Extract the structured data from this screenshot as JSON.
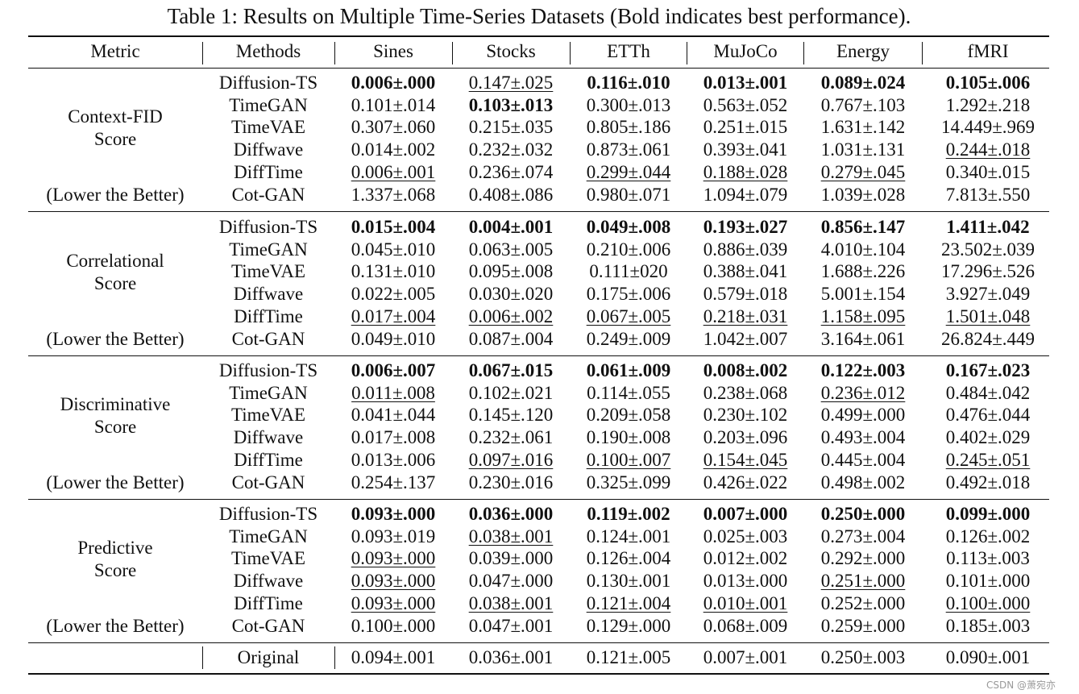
{
  "title": "Table 1: Results on Multiple Time-Series Datasets (Bold indicates best performance).",
  "header": [
    "Metric",
    "Methods",
    "Sines",
    "Stocks",
    "ETTh",
    "MuJoCo",
    "Energy",
    "fMRI"
  ],
  "blocks": [
    {
      "metric": [
        "Context-FID",
        "Score"
      ],
      "note": "(Lower the Better)",
      "rows": [
        [
          "Diffusion-TS",
          "0.006±.000",
          "0.147±.025",
          "0.116±.010",
          "0.013±.001",
          "0.089±.024",
          "0.105±.006"
        ],
        [
          "TimeGAN",
          "0.101±.014",
          "0.103±.013",
          "0.300±.013",
          "0.563±.052",
          "0.767±.103",
          "1.292±.218"
        ],
        [
          "TimeVAE",
          "0.307±.060",
          "0.215±.035",
          "0.805±.186",
          "0.251±.015",
          "1.631±.142",
          "14.449±.969"
        ],
        [
          "Diffwave",
          "0.014±.002",
          "0.232±.032",
          "0.873±.061",
          "0.393±.041",
          "1.031±.131",
          "0.244±.018"
        ],
        [
          "DiffTime",
          "0.006±.001",
          "0.236±.074",
          "0.299±.044",
          "0.188±.028",
          "0.279±.045",
          "0.340±.015"
        ],
        [
          "Cot-GAN",
          "1.337±.068",
          "0.408±.086",
          "0.980±.071",
          "1.094±.079",
          "1.039±.028",
          "7.813±.550"
        ]
      ],
      "style": [
        [
          "b",
          "u",
          "b",
          "b",
          "b",
          "b"
        ],
        [
          null,
          "b",
          null,
          null,
          null,
          null
        ],
        [
          null,
          null,
          null,
          null,
          null,
          null
        ],
        [
          null,
          null,
          null,
          null,
          null,
          "u"
        ],
        [
          "u",
          null,
          "u",
          "u",
          "u",
          null
        ],
        [
          null,
          null,
          null,
          null,
          null,
          null
        ]
      ]
    },
    {
      "metric": [
        "Correlational",
        "Score"
      ],
      "note": "(Lower the Better)",
      "rows": [
        [
          "Diffusion-TS",
          "0.015±.004",
          "0.004±.001",
          "0.049±.008",
          "0.193±.027",
          "0.856±.147",
          "1.411±.042"
        ],
        [
          "TimeGAN",
          "0.045±.010",
          "0.063±.005",
          "0.210±.006",
          "0.886±.039",
          "4.010±.104",
          "23.502±.039"
        ],
        [
          "TimeVAE",
          "0.131±.010",
          "0.095±.008",
          "0.111±020",
          "0.388±.041",
          "1.688±.226",
          "17.296±.526"
        ],
        [
          "Diffwave",
          "0.022±.005",
          "0.030±.020",
          "0.175±.006",
          "0.579±.018",
          "5.001±.154",
          "3.927±.049"
        ],
        [
          "DiffTime",
          "0.017±.004",
          "0.006±.002",
          "0.067±.005",
          "0.218±.031",
          "1.158±.095",
          "1.501±.048"
        ],
        [
          "Cot-GAN",
          "0.049±.010",
          "0.087±.004",
          "0.249±.009",
          "1.042±.007",
          "3.164±.061",
          "26.824±.449"
        ]
      ],
      "style": [
        [
          "b",
          "b",
          "b",
          "b",
          "b",
          "b"
        ],
        [
          null,
          null,
          null,
          null,
          null,
          null
        ],
        [
          null,
          null,
          null,
          null,
          null,
          null
        ],
        [
          null,
          null,
          null,
          null,
          null,
          null
        ],
        [
          "u",
          "u",
          "u",
          "u",
          "u",
          "u"
        ],
        [
          null,
          null,
          null,
          null,
          null,
          null
        ]
      ]
    },
    {
      "metric": [
        "Discriminative",
        "Score"
      ],
      "note": "(Lower the Better)",
      "rows": [
        [
          "Diffusion-TS",
          "0.006±.007",
          "0.067±.015",
          "0.061±.009",
          "0.008±.002",
          "0.122±.003",
          "0.167±.023"
        ],
        [
          "TimeGAN",
          "0.011±.008",
          "0.102±.021",
          "0.114±.055",
          "0.238±.068",
          "0.236±.012",
          "0.484±.042"
        ],
        [
          "TimeVAE",
          "0.041±.044",
          "0.145±.120",
          "0.209±.058",
          "0.230±.102",
          "0.499±.000",
          "0.476±.044"
        ],
        [
          "Diffwave",
          "0.017±.008",
          "0.232±.061",
          "0.190±.008",
          "0.203±.096",
          "0.493±.004",
          "0.402±.029"
        ],
        [
          "DiffTime",
          "0.013±.006",
          "0.097±.016",
          "0.100±.007",
          "0.154±.045",
          "0.445±.004",
          "0.245±.051"
        ],
        [
          "Cot-GAN",
          "0.254±.137",
          "0.230±.016",
          "0.325±.099",
          "0.426±.022",
          "0.498±.002",
          "0.492±.018"
        ]
      ],
      "style": [
        [
          "b",
          "b",
          "b",
          "b",
          "b",
          "b"
        ],
        [
          "u",
          null,
          null,
          null,
          "u",
          null
        ],
        [
          null,
          null,
          null,
          null,
          null,
          null
        ],
        [
          null,
          null,
          null,
          null,
          null,
          null
        ],
        [
          null,
          "u",
          "u",
          "u",
          null,
          "u"
        ],
        [
          null,
          null,
          null,
          null,
          null,
          null
        ]
      ]
    },
    {
      "metric": [
        "Predictive",
        "Score"
      ],
      "note": "(Lower the Better)",
      "rows": [
        [
          "Diffusion-TS",
          "0.093±.000",
          "0.036±.000",
          "0.119±.002",
          "0.007±.000",
          "0.250±.000",
          "0.099±.000"
        ],
        [
          "TimeGAN",
          "0.093±.019",
          "0.038±.001",
          "0.124±.001",
          "0.025±.003",
          "0.273±.004",
          "0.126±.002"
        ],
        [
          "TimeVAE",
          "0.093±.000",
          "0.039±.000",
          "0.126±.004",
          "0.012±.002",
          "0.292±.000",
          "0.113±.003"
        ],
        [
          "Diffwave",
          "0.093±.000",
          "0.047±.000",
          "0.130±.001",
          "0.013±.000",
          "0.251±.000",
          "0.101±.000"
        ],
        [
          "DiffTime",
          "0.093±.000",
          "0.038±.001",
          "0.121±.004",
          "0.010±.001",
          "0.252±.000",
          "0.100±.000"
        ],
        [
          "Cot-GAN",
          "0.100±.000",
          "0.047±.001",
          "0.129±.000",
          "0.068±.009",
          "0.259±.000",
          "0.185±.003"
        ]
      ],
      "style": [
        [
          "b",
          "b",
          "b",
          "b",
          "b",
          "b"
        ],
        [
          null,
          "u",
          null,
          null,
          null,
          null
        ],
        [
          "u",
          null,
          null,
          null,
          null,
          null
        ],
        [
          "u",
          null,
          null,
          null,
          "u",
          null
        ],
        [
          "u",
          "u",
          "u",
          "u",
          null,
          "u"
        ],
        [
          null,
          null,
          null,
          null,
          null,
          null
        ]
      ]
    }
  ],
  "original": [
    "Original",
    "0.094±.001",
    "0.036±.001",
    "0.121±.005",
    "0.007±.001",
    "0.250±.003",
    "0.090±.001"
  ],
  "watermark": "CSDN @萧宛亦"
}
